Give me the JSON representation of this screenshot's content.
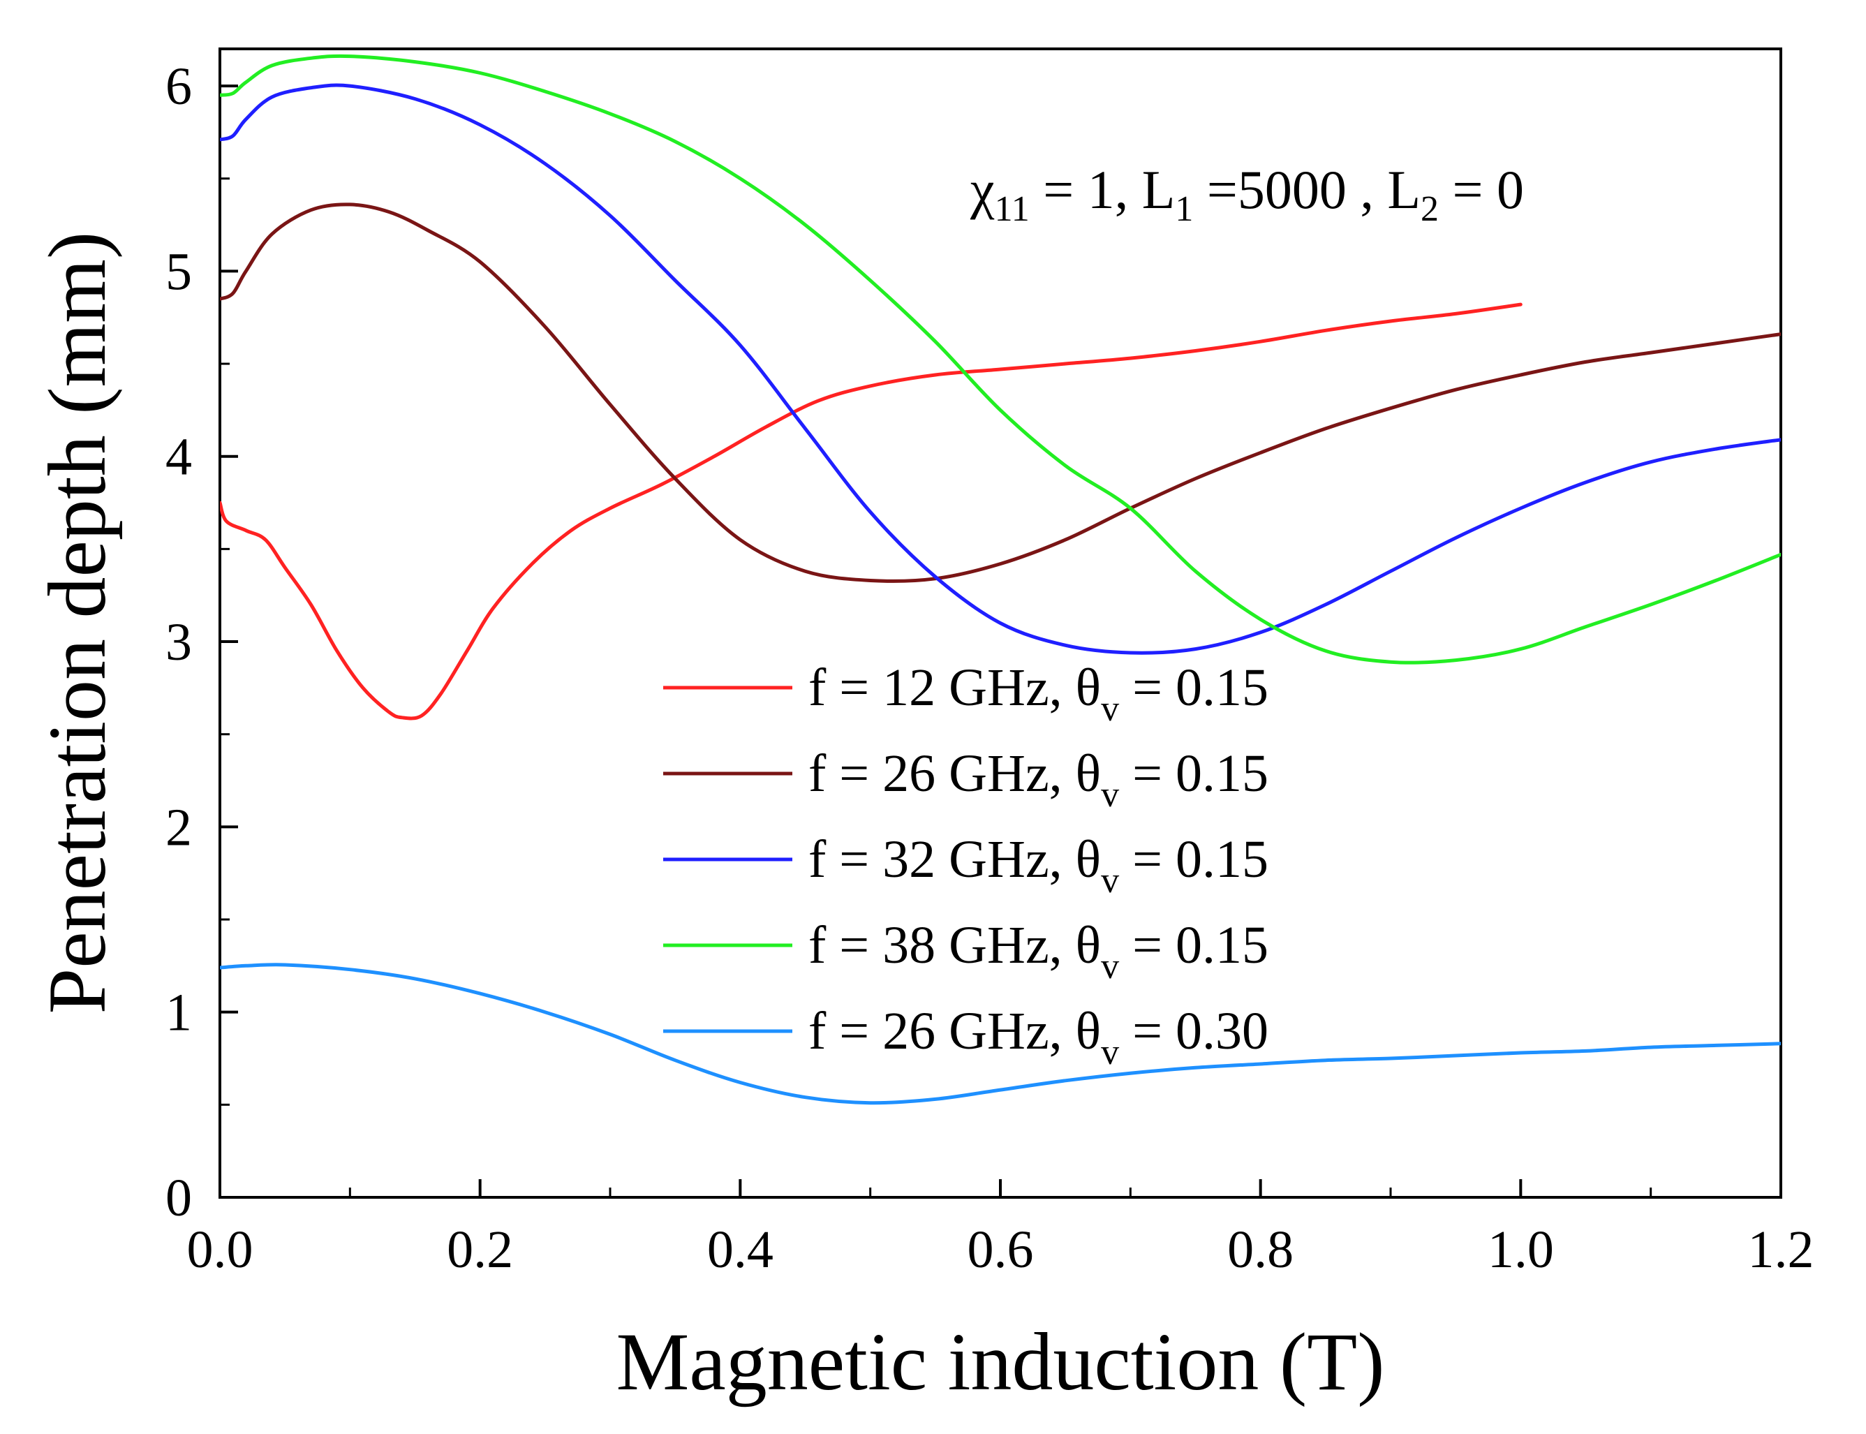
{
  "chart_data": {
    "type": "line",
    "title": "",
    "xlabel": "Magnetic induction (T)",
    "ylabel": "Penetration depth (mm)",
    "xlim": [
      0,
      1.2
    ],
    "ylim": [
      0,
      6.2
    ],
    "x_ticks": [
      "0.0",
      "0.2",
      "0.4",
      "0.6",
      "0.8",
      "1.0",
      "1.2"
    ],
    "y_ticks": [
      "0",
      "1",
      "2",
      "3",
      "4",
      "5",
      "6"
    ],
    "grid": false,
    "legend_position": "center",
    "annotation": {
      "chi": "χ",
      "chi_sub": "11",
      "eq1": " = 1, L",
      "l1_sub": "1",
      "eq2": " =5000 , L",
      "l2_sub": "2",
      "eq3": " = 0"
    },
    "series": [
      {
        "name": "f = 12 GHz, θv = 0.15",
        "label_main": "f = 12 GHz, θ",
        "label_sub": "v",
        "label_tail": " = 0.15",
        "color": "#ff2222",
        "points": [
          [
            0,
            3.75
          ],
          [
            0.005,
            3.65
          ],
          [
            0.02,
            3.6
          ],
          [
            0.035,
            3.55
          ],
          [
            0.05,
            3.4
          ],
          [
            0.07,
            3.2
          ],
          [
            0.09,
            2.95
          ],
          [
            0.11,
            2.75
          ],
          [
            0.13,
            2.62
          ],
          [
            0.14,
            2.59
          ],
          [
            0.155,
            2.6
          ],
          [
            0.17,
            2.72
          ],
          [
            0.19,
            2.95
          ],
          [
            0.21,
            3.18
          ],
          [
            0.24,
            3.42
          ],
          [
            0.27,
            3.6
          ],
          [
            0.3,
            3.72
          ],
          [
            0.34,
            3.85
          ],
          [
            0.38,
            4.0
          ],
          [
            0.42,
            4.16
          ],
          [
            0.46,
            4.3
          ],
          [
            0.5,
            4.38
          ],
          [
            0.55,
            4.44
          ],
          [
            0.6,
            4.47
          ],
          [
            0.65,
            4.5
          ],
          [
            0.7,
            4.53
          ],
          [
            0.75,
            4.57
          ],
          [
            0.8,
            4.62
          ],
          [
            0.85,
            4.68
          ],
          [
            0.9,
            4.73
          ],
          [
            0.95,
            4.77
          ],
          [
            1.0,
            4.82
          ]
        ]
      },
      {
        "name": "f = 26 GHz, θv = 0.15",
        "label_main": "f = 26 GHz, θ",
        "label_sub": "v",
        "label_tail": " = 0.15",
        "color": "#7a1515",
        "points": [
          [
            0,
            4.85
          ],
          [
            0.01,
            4.88
          ],
          [
            0.02,
            5.0
          ],
          [
            0.04,
            5.2
          ],
          [
            0.07,
            5.33
          ],
          [
            0.1,
            5.36
          ],
          [
            0.13,
            5.32
          ],
          [
            0.16,
            5.22
          ],
          [
            0.2,
            5.05
          ],
          [
            0.25,
            4.7
          ],
          [
            0.3,
            4.28
          ],
          [
            0.35,
            3.88
          ],
          [
            0.4,
            3.55
          ],
          [
            0.45,
            3.38
          ],
          [
            0.5,
            3.33
          ],
          [
            0.55,
            3.34
          ],
          [
            0.6,
            3.42
          ],
          [
            0.65,
            3.55
          ],
          [
            0.7,
            3.72
          ],
          [
            0.75,
            3.88
          ],
          [
            0.8,
            4.02
          ],
          [
            0.85,
            4.15
          ],
          [
            0.9,
            4.26
          ],
          [
            0.95,
            4.36
          ],
          [
            1.0,
            4.44
          ],
          [
            1.05,
            4.51
          ],
          [
            1.1,
            4.56
          ],
          [
            1.15,
            4.61
          ],
          [
            1.2,
            4.66
          ]
        ]
      },
      {
        "name": "f = 32 GHz, θv = 0.15",
        "label_main": "f = 32 GHz, θ",
        "label_sub": "v",
        "label_tail": " = 0.15",
        "color": "#1f1fff",
        "points": [
          [
            0,
            5.71
          ],
          [
            0.01,
            5.73
          ],
          [
            0.02,
            5.82
          ],
          [
            0.04,
            5.94
          ],
          [
            0.07,
            5.99
          ],
          [
            0.1,
            6.0
          ],
          [
            0.15,
            5.93
          ],
          [
            0.2,
            5.79
          ],
          [
            0.25,
            5.58
          ],
          [
            0.3,
            5.3
          ],
          [
            0.35,
            4.95
          ],
          [
            0.4,
            4.6
          ],
          [
            0.45,
            4.15
          ],
          [
            0.5,
            3.7
          ],
          [
            0.55,
            3.35
          ],
          [
            0.6,
            3.1
          ],
          [
            0.65,
            2.98
          ],
          [
            0.7,
            2.94
          ],
          [
            0.75,
            2.96
          ],
          [
            0.8,
            3.05
          ],
          [
            0.85,
            3.2
          ],
          [
            0.9,
            3.38
          ],
          [
            0.95,
            3.56
          ],
          [
            1.0,
            3.72
          ],
          [
            1.05,
            3.86
          ],
          [
            1.1,
            3.97
          ],
          [
            1.15,
            4.04
          ],
          [
            1.2,
            4.09
          ]
        ]
      },
      {
        "name": "f = 38 GHz, θv = 0.15",
        "label_main": "f = 38 GHz, θ",
        "label_sub": "v",
        "label_tail": " = 0.15",
        "color": "#22ee22",
        "points": [
          [
            0,
            5.95
          ],
          [
            0.01,
            5.96
          ],
          [
            0.02,
            6.02
          ],
          [
            0.04,
            6.11
          ],
          [
            0.07,
            6.15
          ],
          [
            0.1,
            6.16
          ],
          [
            0.15,
            6.13
          ],
          [
            0.2,
            6.07
          ],
          [
            0.25,
            5.97
          ],
          [
            0.3,
            5.85
          ],
          [
            0.35,
            5.7
          ],
          [
            0.4,
            5.5
          ],
          [
            0.45,
            5.25
          ],
          [
            0.5,
            4.95
          ],
          [
            0.55,
            4.62
          ],
          [
            0.6,
            4.25
          ],
          [
            0.65,
            3.95
          ],
          [
            0.7,
            3.72
          ],
          [
            0.75,
            3.38
          ],
          [
            0.8,
            3.12
          ],
          [
            0.85,
            2.95
          ],
          [
            0.9,
            2.89
          ],
          [
            0.95,
            2.9
          ],
          [
            1.0,
            2.96
          ],
          [
            1.05,
            3.08
          ],
          [
            1.1,
            3.2
          ],
          [
            1.15,
            3.33
          ],
          [
            1.2,
            3.47
          ]
        ]
      },
      {
        "name": "f = 26 GHz, θv = 0.30",
        "label_main": "f = 26 GHz, θ",
        "label_sub": "v",
        "label_tail": " = 0.30",
        "color": "#1e90ff",
        "points": [
          [
            0,
            1.24
          ],
          [
            0.02,
            1.25
          ],
          [
            0.05,
            1.255
          ],
          [
            0.1,
            1.23
          ],
          [
            0.15,
            1.18
          ],
          [
            0.2,
            1.1
          ],
          [
            0.25,
            1.0
          ],
          [
            0.3,
            0.88
          ],
          [
            0.35,
            0.74
          ],
          [
            0.4,
            0.62
          ],
          [
            0.45,
            0.54
          ],
          [
            0.5,
            0.51
          ],
          [
            0.55,
            0.53
          ],
          [
            0.6,
            0.58
          ],
          [
            0.65,
            0.63
          ],
          [
            0.7,
            0.67
          ],
          [
            0.75,
            0.7
          ],
          [
            0.8,
            0.72
          ],
          [
            0.85,
            0.74
          ],
          [
            0.9,
            0.75
          ],
          [
            0.95,
            0.765
          ],
          [
            1.0,
            0.78
          ],
          [
            1.05,
            0.79
          ],
          [
            1.1,
            0.81
          ],
          [
            1.15,
            0.82
          ],
          [
            1.2,
            0.83
          ]
        ]
      }
    ]
  }
}
